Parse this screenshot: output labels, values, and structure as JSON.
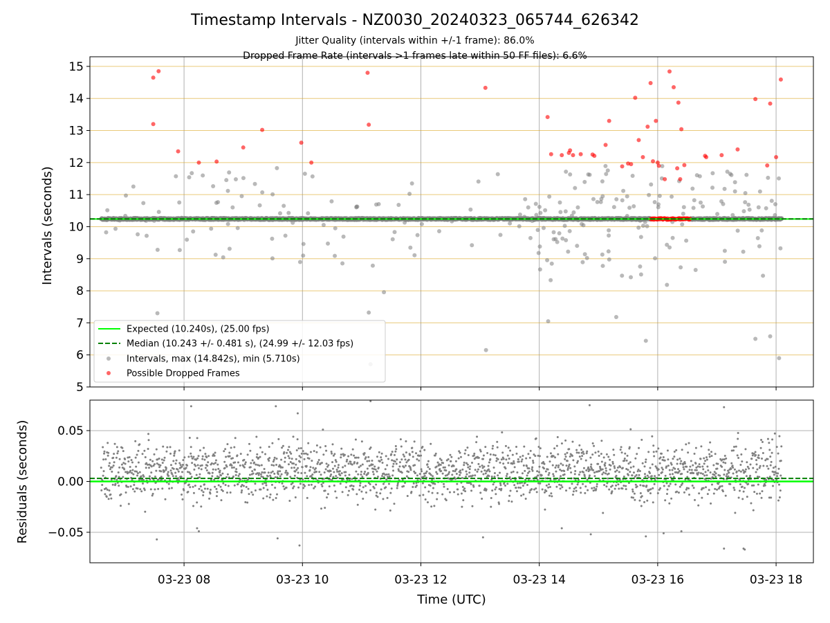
{
  "title": "Timestamp Intervals - NZ0030_20240323_065744_626342",
  "subtitle_1": "Jitter Quality (intervals within +/-1 frame): 86.0%",
  "subtitle_2": "Dropped Frame Rate (intervals >1 frames late within 50 FF files): 6.6%",
  "colors": {
    "expected": "#00ff00",
    "median": "#008000",
    "intervals": "#808080",
    "dropped": "#ff0000",
    "frame_grid": "#daa520",
    "grid": "#b0b0b0"
  },
  "chart_data": [
    {
      "type": "scatter",
      "panel": "intervals",
      "ylabel": "Intervals (seconds)",
      "ylim": [
        5,
        15.3
      ],
      "yticks": [
        5,
        6,
        7,
        8,
        9,
        10,
        11,
        12,
        13,
        14,
        15
      ],
      "xlim_hours": [
        6.41,
        18.63
      ],
      "xticks": [
        {
          "hour": 8,
          "label": "03-23 08"
        },
        {
          "hour": 10,
          "label": "03-23 10"
        },
        {
          "hour": 12,
          "label": "03-23 12"
        },
        {
          "hour": 14,
          "label": "03-23 14"
        },
        {
          "hour": 16,
          "label": "03-23 16"
        },
        {
          "hour": 18,
          "label": "03-23 18"
        }
      ],
      "frame_grid_lines": [
        5,
        6,
        7,
        8,
        9,
        10,
        11,
        12,
        13,
        14,
        15
      ],
      "expected": 10.24,
      "median": 10.243,
      "legend_position": "lower-left",
      "legend": {
        "expected": "Expected (10.240s), (25.00 fps)",
        "median": "Median (10.243 +/- 0.481 s), (24.99 +/- 12.03 fps)",
        "intervals": "Intervals, max (14.842s), min (5.710s)",
        "dropped": "Possible Dropped Frames"
      },
      "series": [
        {
          "name": "Possible Dropped Frames",
          "x": [
            7.48,
            7.57,
            7.48,
            7.9,
            8.25,
            8.55,
            9.0,
            9.32,
            9.98,
            10.15,
            11.1,
            11.12,
            13.09,
            14.14,
            14.2,
            14.38,
            14.5,
            14.52,
            14.57,
            14.7,
            14.9,
            14.93,
            15.12,
            15.18,
            15.4,
            15.5,
            15.55,
            15.62,
            15.68,
            15.75,
            15.83,
            15.88,
            15.92,
            15.97,
            16.0,
            16.02,
            16.12,
            16.2,
            16.27,
            16.33,
            16.35,
            16.38,
            16.4,
            16.45,
            16.8,
            16.82,
            17.08,
            17.35,
            17.65,
            17.85,
            17.9,
            18.0,
            18.08
          ],
          "y": [
            14.65,
            14.85,
            13.2,
            12.35,
            12.0,
            12.03,
            12.47,
            13.02,
            12.62,
            12.0,
            14.8,
            13.18,
            14.33,
            13.42,
            12.26,
            12.23,
            12.3,
            12.38,
            12.23,
            12.26,
            12.25,
            12.21,
            12.55,
            13.3,
            11.88,
            11.97,
            11.95,
            14.02,
            12.7,
            12.17,
            13.12,
            14.48,
            12.04,
            13.3,
            12.0,
            11.9,
            11.48,
            14.84,
            14.35,
            11.82,
            13.87,
            11.48,
            13.04,
            11.92,
            12.21,
            12.17,
            12.23,
            12.41,
            13.98,
            11.91,
            13.84,
            12.17,
            14.59
          ]
        }
      ]
    },
    {
      "type": "scatter",
      "panel": "residuals",
      "ylabel": "Residuals (seconds)",
      "xlabel": "Time (UTC)",
      "ylim": [
        -0.08,
        0.08
      ],
      "yticks": [
        {
          "value": -0.05,
          "label": "−0.05"
        },
        {
          "value": 0,
          "label": "0.00"
        },
        {
          "value": 0.05,
          "label": "0.05"
        }
      ],
      "expected": 0.0,
      "median": 0.003,
      "outliers": {
        "x": [
          7.54,
          8.12,
          8.22,
          8.25,
          9.55,
          9.58,
          9.92,
          9.95,
          11.15,
          13.05,
          14.38,
          14.85,
          14.87,
          15.8,
          16.1,
          16.4,
          17.12,
          17.12,
          17.45,
          17.47
        ],
        "y": [
          -0.057,
          0.074,
          -0.046,
          -0.049,
          0.074,
          -0.056,
          0.067,
          -0.063,
          0.079,
          -0.055,
          -0.046,
          0.075,
          -0.052,
          -0.054,
          -0.051,
          -0.049,
          0.073,
          -0.066,
          -0.066,
          -0.067
        ]
      }
    }
  ]
}
